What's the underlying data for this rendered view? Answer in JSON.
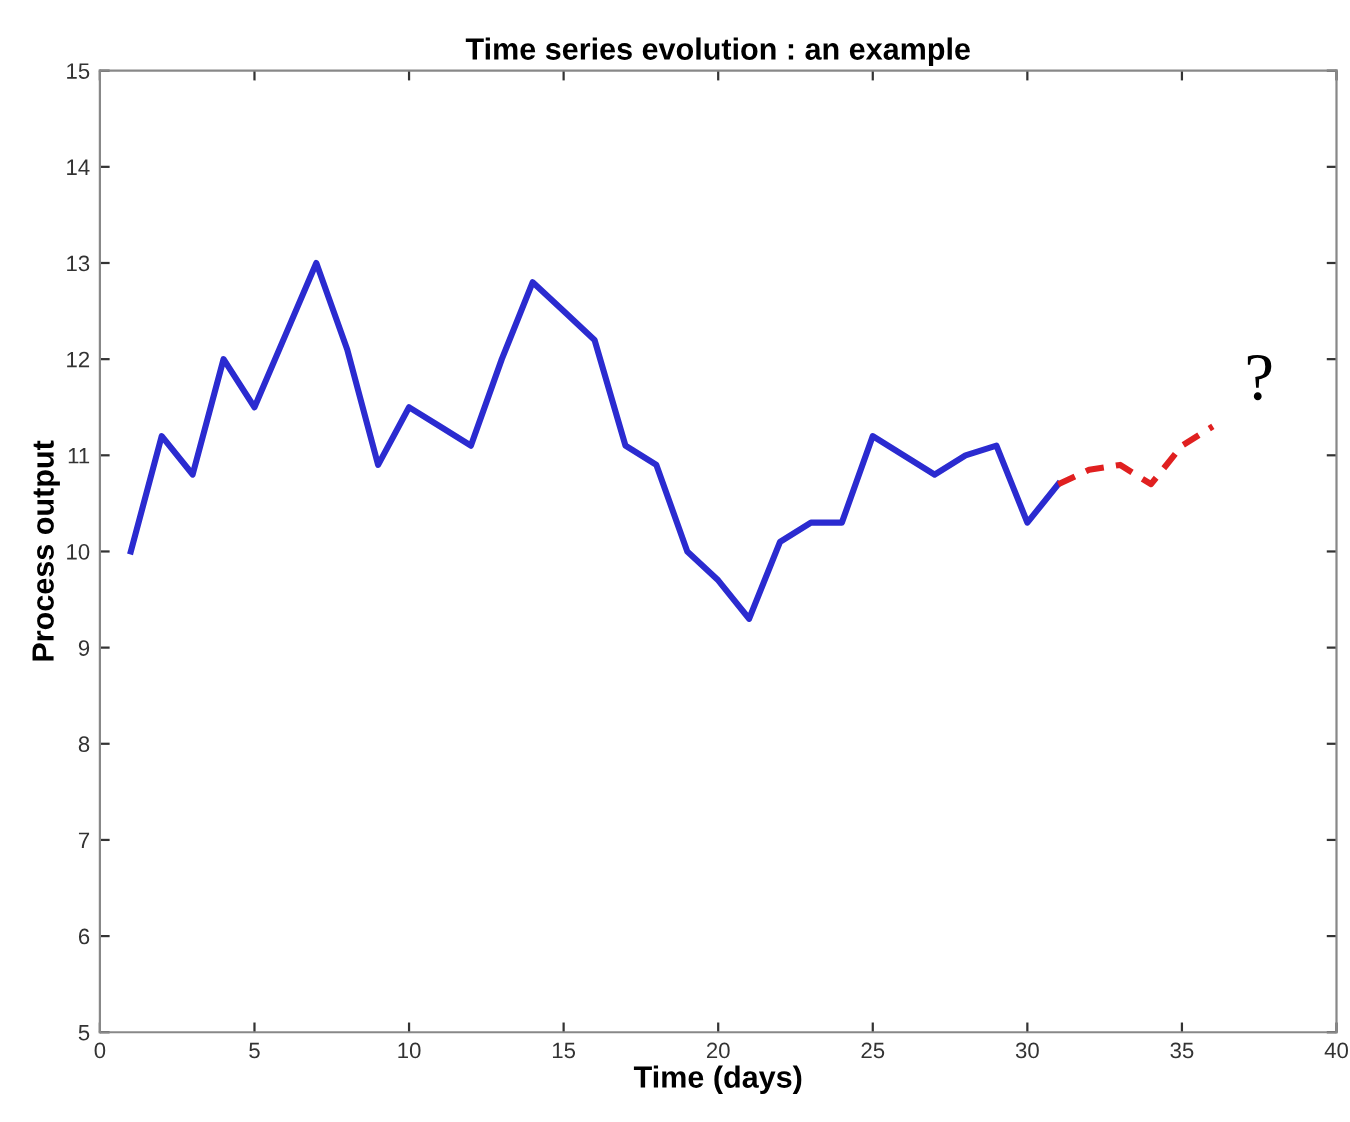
{
  "chart_data": {
    "type": "line",
    "title": "Time series evolution : an example",
    "xlabel": "Time (days)",
    "ylabel": "Process output",
    "series": [
      {
        "color": "#2b2bd0",
        "line_style": "solid",
        "x": [
          1,
          2,
          3,
          4,
          5,
          6,
          7,
          8,
          9,
          10,
          11,
          12,
          13,
          14,
          15,
          16,
          17,
          18,
          19,
          20,
          21,
          22,
          23,
          24,
          25,
          26,
          27,
          28,
          29,
          30,
          31
        ],
        "values": [
          10,
          11.2,
          10.8,
          12,
          11.5,
          12.25,
          13,
          12.1,
          10.9,
          11.5,
          11.3,
          11.1,
          12,
          12.8,
          12.5,
          12.2,
          11.1,
          10.9,
          10,
          9.7,
          9.3,
          10.1,
          10.3,
          10.3,
          11.2,
          11,
          10.8,
          11,
          11.1,
          10.3,
          10.7
        ]
      },
      {
        "color": "#e02020",
        "line_style": "dashed",
        "x": [
          31,
          32,
          33,
          34,
          35,
          36
        ],
        "values": [
          10.7,
          10.85,
          10.9,
          10.7,
          11.1,
          11.3
        ]
      }
    ],
    "annotations": [
      "?"
    ],
    "xlim": [
      0,
      40
    ],
    "xticks": [
      0,
      5,
      10,
      15,
      20,
      25,
      30,
      35,
      40
    ],
    "ylim": [
      5,
      15
    ],
    "yticks": [
      5,
      6,
      7,
      8,
      9,
      10,
      11,
      12,
      13,
      14,
      15
    ],
    "grid": false,
    "legend": false,
    "marker": "none"
  }
}
